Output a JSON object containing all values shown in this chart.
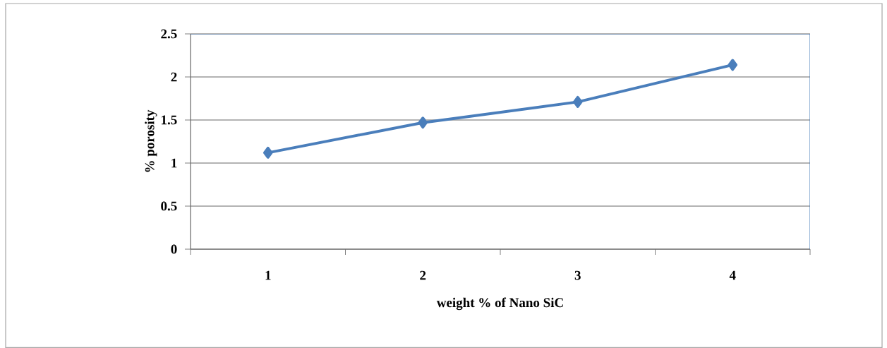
{
  "chart_data": {
    "type": "line",
    "xlabel": "weight % of Nano SiC",
    "ylabel": "% porosity",
    "categories": [
      "1",
      "2",
      "3",
      "4"
    ],
    "series": [
      {
        "color": "#4a7ebb",
        "values": [
          1.12,
          1.47,
          1.71,
          2.14
        ]
      }
    ],
    "ylim": [
      0,
      2.5
    ],
    "yticks": [
      0,
      0.5,
      1,
      1.5,
      2,
      2.5
    ],
    "grid": "y",
    "marker": "diamond",
    "line_style": "solid"
  }
}
